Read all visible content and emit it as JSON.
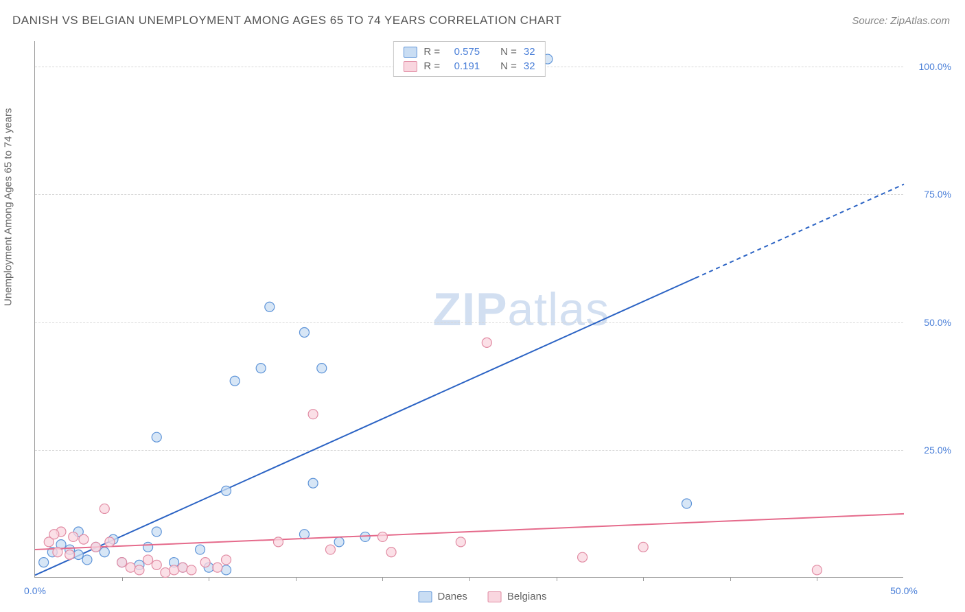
{
  "title": "DANISH VS BELGIAN UNEMPLOYMENT AMONG AGES 65 TO 74 YEARS CORRELATION CHART",
  "source_label": "Source: ",
  "source_name": "ZipAtlas.com",
  "watermark_bold": "ZIP",
  "watermark_light": "atlas",
  "y_axis_label": "Unemployment Among Ages 65 to 74 years",
  "chart": {
    "type": "scatter",
    "xlim": [
      0,
      50
    ],
    "ylim": [
      0,
      105
    ],
    "x_ticks_labeled": [
      {
        "value": 0,
        "label": "0.0%"
      },
      {
        "value": 50,
        "label": "50.0%"
      }
    ],
    "x_ticks_minor": [
      5,
      10,
      15,
      20,
      25,
      30,
      35,
      40,
      45
    ],
    "y_ticks": [
      {
        "value": 25,
        "label": "25.0%"
      },
      {
        "value": 50,
        "label": "50.0%"
      },
      {
        "value": 75,
        "label": "75.0%"
      },
      {
        "value": 100,
        "label": "100.0%"
      }
    ],
    "background_color": "#ffffff",
    "grid_color": "#d8d8d8",
    "axis_color": "#999999",
    "tick_label_color": "#4a7fd8",
    "tick_fontsize": 14,
    "marker_radius": 7,
    "marker_stroke_width": 1.2,
    "line_width": 2,
    "series": [
      {
        "name": "Danes",
        "fill_color": "#c9ddf3",
        "stroke_color": "#5e94d8",
        "line_color": "#2b63c4",
        "r": 0.575,
        "n": 32,
        "trend": {
          "x1": 0,
          "y1": 0.5,
          "x2": 50,
          "y2": 77
        },
        "trend_solid_end_x": 38,
        "points": [
          [
            29.5,
            101.5
          ],
          [
            13.5,
            53.0
          ],
          [
            15.5,
            48.0
          ],
          [
            13.0,
            41.0
          ],
          [
            16.5,
            41.0
          ],
          [
            11.5,
            38.5
          ],
          [
            7.0,
            27.5
          ],
          [
            16.0,
            18.5
          ],
          [
            11.0,
            17.0
          ],
          [
            37.5,
            14.5
          ],
          [
            7.0,
            9.0
          ],
          [
            15.5,
            8.5
          ],
          [
            17.5,
            7.0
          ],
          [
            19.0,
            8.0
          ],
          [
            2.0,
            5.5
          ],
          [
            2.5,
            4.5
          ],
          [
            0.5,
            3.0
          ],
          [
            1.0,
            5.0
          ],
          [
            1.5,
            6.5
          ],
          [
            3.0,
            3.5
          ],
          [
            4.0,
            5.0
          ],
          [
            5.0,
            3.0
          ],
          [
            6.0,
            2.5
          ],
          [
            8.0,
            3.0
          ],
          [
            8.5,
            2.0
          ],
          [
            10.0,
            2.0
          ],
          [
            11.0,
            1.5
          ],
          [
            2.5,
            9.0
          ],
          [
            4.5,
            7.5
          ],
          [
            3.5,
            6.0
          ],
          [
            6.5,
            6.0
          ],
          [
            9.5,
            5.5
          ]
        ]
      },
      {
        "name": "Belgians",
        "fill_color": "#f9d6df",
        "stroke_color": "#e18ba3",
        "line_color": "#e56a8b",
        "r": 0.191,
        "n": 32,
        "trend": {
          "x1": 0,
          "y1": 5.5,
          "x2": 50,
          "y2": 12.5
        },
        "trend_solid_end_x": 50,
        "points": [
          [
            26.0,
            46.0
          ],
          [
            16.0,
            32.0
          ],
          [
            4.0,
            13.5
          ],
          [
            1.5,
            9.0
          ],
          [
            0.8,
            7.0
          ],
          [
            1.1,
            8.5
          ],
          [
            2.2,
            8.0
          ],
          [
            2.8,
            7.5
          ],
          [
            3.5,
            6.0
          ],
          [
            4.3,
            7.0
          ],
          [
            5.0,
            3.0
          ],
          [
            5.5,
            2.0
          ],
          [
            6.0,
            1.5
          ],
          [
            6.5,
            3.5
          ],
          [
            7.0,
            2.5
          ],
          [
            7.5,
            1.0
          ],
          [
            8.0,
            1.5
          ],
          [
            8.5,
            2.0
          ],
          [
            9.0,
            1.5
          ],
          [
            9.8,
            3.0
          ],
          [
            10.5,
            2.0
          ],
          [
            11.0,
            3.5
          ],
          [
            14.0,
            7.0
          ],
          [
            17.0,
            5.5
          ],
          [
            20.0,
            8.0
          ],
          [
            20.5,
            5.0
          ],
          [
            24.5,
            7.0
          ],
          [
            31.5,
            4.0
          ],
          [
            35.0,
            6.0
          ],
          [
            45.0,
            1.5
          ],
          [
            2.0,
            4.5
          ],
          [
            1.3,
            5.0
          ]
        ]
      }
    ]
  },
  "legend_top": {
    "r_label": "R =",
    "n_label": "N ="
  },
  "legend_bottom": {
    "items": [
      {
        "label": "Danes",
        "fill": "#c9ddf3",
        "stroke": "#5e94d8"
      },
      {
        "label": "Belgians",
        "fill": "#f9d6df",
        "stroke": "#e18ba3"
      }
    ]
  }
}
